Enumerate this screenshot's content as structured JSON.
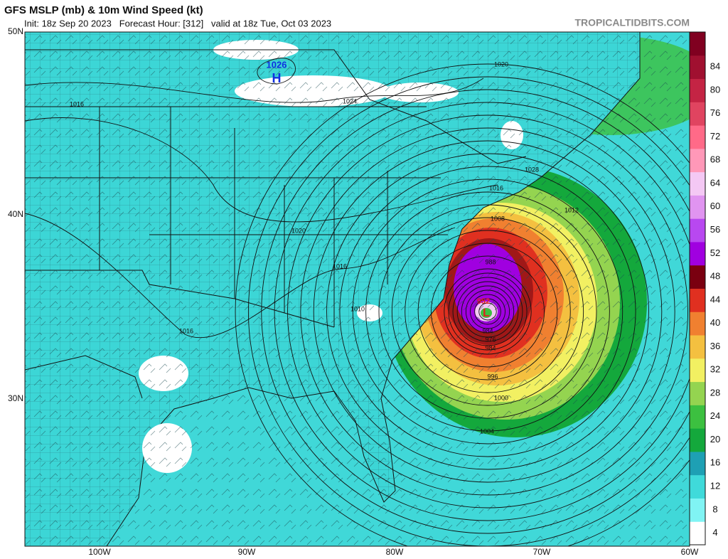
{
  "header": {
    "title": "GFS MSLP (mb) & 10m Wind Speed (kt)",
    "subtitle": "Init: 18z Sep 20 2023   Forecast Hour: [312]   valid at 18z Tue, Oct 03 2023",
    "source": "TROPICALTIDBITS.COM"
  },
  "map": {
    "lat_labels": [
      "50N",
      "40N",
      "30N"
    ],
    "lon_labels": [
      "100W",
      "90W",
      "80W",
      "70W",
      "60W"
    ],
    "high": {
      "value": "1026",
      "label": "H"
    },
    "low": {
      "value": "952",
      "label": "L"
    },
    "isobar_labels": [
      "1020",
      "1016",
      "1024",
      "1028",
      "1016",
      "1012",
      "1008",
      "1020",
      "1016",
      "988",
      "1016",
      "1010",
      "984",
      "976",
      "984",
      "996",
      "1000",
      "1004"
    ]
  },
  "colorbar": {
    "ticks": [
      4,
      8,
      12,
      16,
      20,
      24,
      28,
      32,
      36,
      40,
      44,
      48,
      52,
      56,
      60,
      64,
      68,
      72,
      76,
      80,
      84
    ],
    "colors": [
      "#ffffff",
      "#80f4f4",
      "#3fdada",
      "#1ea0b4",
      "#14a83c",
      "#3cc040",
      "#94d450",
      "#f2f062",
      "#f4c040",
      "#f08030",
      "#e03020",
      "#7a0010",
      "#a000e0",
      "#b848f0",
      "#e094f0",
      "#f4c8f4",
      "#ff98b8",
      "#ff6a88",
      "#e04460",
      "#c42444",
      "#a01030",
      "#800020"
    ]
  }
}
